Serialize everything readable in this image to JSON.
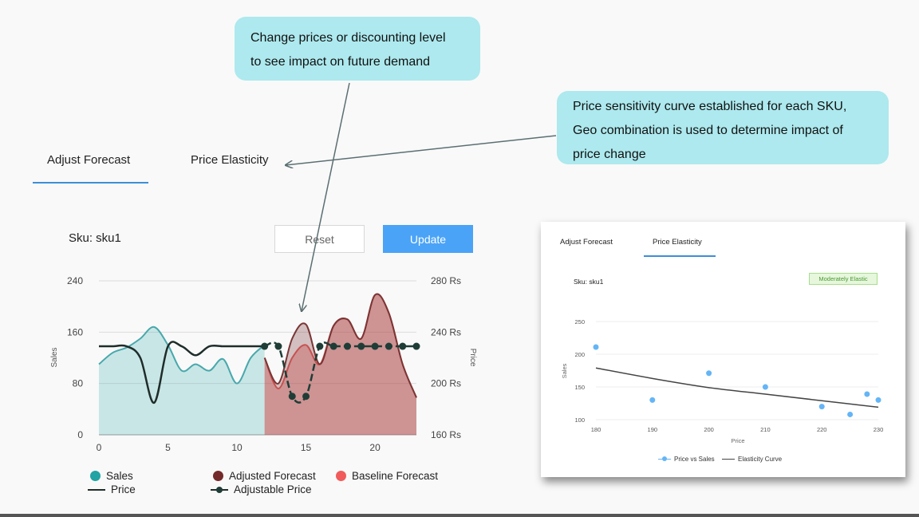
{
  "callouts": {
    "demand_line1": "Change prices or discounting level",
    "demand_line2": "to see impact on future demand",
    "elasticity_line1": "Price sensitivity curve established for each SKU,",
    "elasticity_line2": "Geo combination is used to determine impact of",
    "elasticity_line3": "price change"
  },
  "tabs": {
    "adjust": "Adjust Forecast",
    "price": "Price Elasticity"
  },
  "sku": "Sku: sku1",
  "buttons": {
    "reset": "Reset",
    "update": "Update"
  },
  "colors": {
    "sales": "#22a3a4",
    "adjusted": "#742a2a",
    "baseline": "#f15b5b",
    "price": "#1f2d2a",
    "accent": "#4aa3f7",
    "inset_points": "#64b5f6"
  },
  "chart_data": [
    {
      "type": "area",
      "xlabel": "",
      "ylabel": "Sales",
      "y2label": "Price",
      "x_ticks": [
        "0",
        "5",
        "10",
        "15",
        "20"
      ],
      "y_ticks": [
        "0",
        "80",
        "160",
        "240"
      ],
      "y2_ticks": [
        "160 Rs",
        "200 Rs",
        "240 Rs",
        "280 Rs"
      ],
      "xlim": [
        0,
        23
      ],
      "ylim": [
        0,
        240
      ],
      "y2lim": [
        160,
        280
      ],
      "grid": true,
      "series": [
        {
          "name": "Sales",
          "kind": "area",
          "x": [
            0,
            1,
            2,
            3,
            4,
            5,
            6,
            7,
            8,
            9,
            10,
            11,
            12
          ],
          "values": [
            110,
            128,
            136,
            150,
            168,
            140,
            100,
            110,
            100,
            118,
            80,
            120,
            140
          ]
        },
        {
          "name": "Price",
          "kind": "line",
          "axis": "y2",
          "x": [
            0,
            1,
            2,
            3,
            4,
            5,
            6,
            7,
            8,
            9,
            10,
            11,
            12
          ],
          "values": [
            229,
            229,
            229,
            220,
            185,
            229,
            229,
            222,
            229,
            229,
            229,
            229,
            229
          ]
        },
        {
          "name": "Adjusted Forecast",
          "kind": "area",
          "x": [
            12,
            13,
            14,
            15,
            16,
            17,
            18,
            19,
            20,
            21,
            22,
            23
          ],
          "values": [
            120,
            80,
            150,
            172,
            110,
            170,
            180,
            150,
            218,
            190,
            110,
            58
          ]
        },
        {
          "name": "Baseline Forecast",
          "kind": "area",
          "x": [
            12,
            13,
            14,
            15,
            16,
            17,
            18,
            19,
            20,
            21,
            22,
            23
          ],
          "values": [
            120,
            72,
            120,
            140,
            110,
            170,
            180,
            150,
            218,
            190,
            110,
            58
          ]
        },
        {
          "name": "Adjustable Price",
          "kind": "line",
          "axis": "y2",
          "markers": true,
          "x": [
            12,
            13,
            14,
            15,
            16,
            17,
            18,
            19,
            20,
            21,
            22,
            23
          ],
          "values": [
            229,
            229,
            190,
            190,
            229,
            229,
            229,
            229,
            229,
            229,
            229,
            229
          ]
        }
      ],
      "legend": [
        "Sales",
        "Adjusted Forecast",
        "Baseline Forecast",
        "Price",
        "Adjustable Price"
      ],
      "legend_placement": "bottom"
    },
    {
      "type": "scatter",
      "xlabel": "Price",
      "ylabel": "Sales",
      "x_ticks": [
        "180",
        "190",
        "200",
        "210",
        "220",
        "230"
      ],
      "y_ticks": [
        "100",
        "150",
        "200",
        "250"
      ],
      "xlim": [
        180,
        230
      ],
      "ylim": [
        100,
        250
      ],
      "grid": true,
      "series": [
        {
          "name": "Price vs Sales",
          "kind": "scatter",
          "x": [
            180,
            190,
            200,
            210,
            220,
            225,
            228,
            230
          ],
          "values": [
            211,
            130,
            171,
            150,
            120,
            108,
            139,
            130
          ]
        },
        {
          "name": "Elasticity Curve",
          "kind": "line",
          "x": [
            180,
            190,
            200,
            210,
            220,
            230
          ],
          "values": [
            179,
            163,
            149,
            139,
            129,
            119
          ]
        }
      ],
      "legend": [
        "Price vs Sales",
        "Elasticity Curve"
      ],
      "legend_placement": "bottom"
    }
  ],
  "inset": {
    "tab_adjust": "Adjust Forecast",
    "tab_price": "Price Elasticity",
    "sku": "Sku: sku1",
    "badge": "Moderately Elastic"
  }
}
